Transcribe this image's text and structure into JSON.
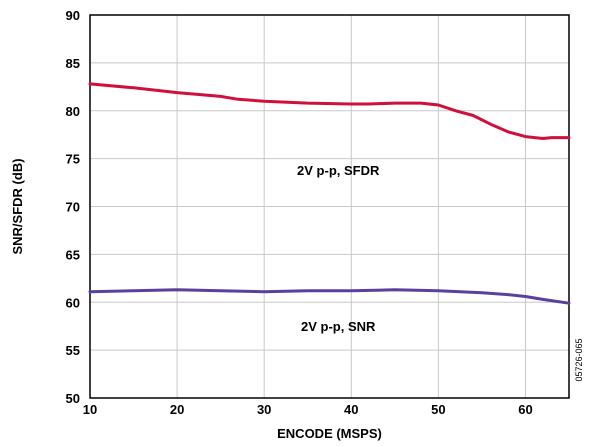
{
  "chart_data": {
    "type": "line",
    "title": "",
    "xlabel": "ENCODE (MSPS)",
    "ylabel": "SNR/SFDR (dB)",
    "xlim": [
      10,
      65
    ],
    "ylim": [
      50,
      90
    ],
    "xticks": [
      10,
      20,
      30,
      40,
      50,
      60
    ],
    "yticks": [
      50,
      55,
      60,
      65,
      70,
      75,
      80,
      85,
      90
    ],
    "grid": true,
    "legend": "none",
    "series": [
      {
        "label": "2V p-p, SFDR",
        "color": "#d0103a",
        "x": [
          10,
          15,
          20,
          25,
          27,
          30,
          35,
          40,
          42,
          45,
          48,
          50,
          52,
          54,
          56,
          58,
          60,
          62,
          63,
          65
        ],
        "y": [
          82.8,
          82.4,
          81.9,
          81.5,
          81.2,
          81.0,
          80.8,
          80.7,
          80.7,
          80.8,
          80.8,
          80.6,
          80.0,
          79.5,
          78.6,
          77.8,
          77.3,
          77.1,
          77.2,
          77.2
        ]
      },
      {
        "label": "2V p-p, SNR",
        "color": "#5b3fa0",
        "x": [
          10,
          15,
          20,
          25,
          30,
          35,
          40,
          45,
          50,
          55,
          58,
          60,
          62,
          65
        ],
        "y": [
          61.1,
          61.2,
          61.3,
          61.2,
          61.1,
          61.2,
          61.2,
          61.3,
          61.2,
          61.0,
          60.8,
          60.6,
          60.3,
          59.9
        ]
      }
    ]
  },
  "figure_id": "05726-065"
}
